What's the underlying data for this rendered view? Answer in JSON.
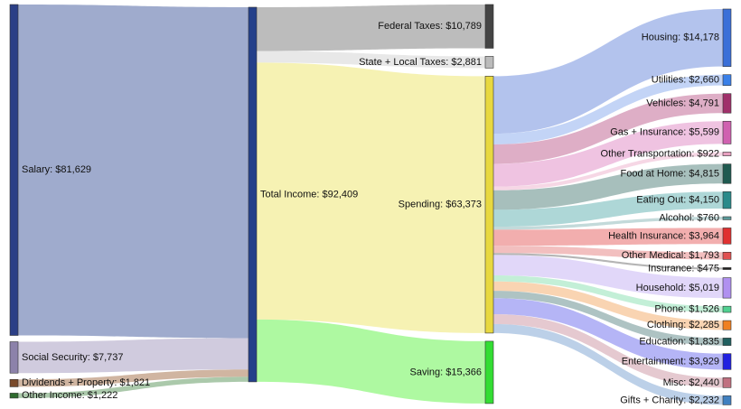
{
  "chart_data": {
    "type": "sankey",
    "nodes": [
      {
        "label": "Salary: $81,629",
        "value": 81629,
        "color": "#2b3f86"
      },
      {
        "label": "Social Security: $7,737",
        "value": 7737,
        "color": "#8c82aa"
      },
      {
        "label": "Dividends + Property: $1,821",
        "value": 1821,
        "color": "#7a4a2a"
      },
      {
        "label": "Other Income: $1,222",
        "value": 1222,
        "color": "#2e6b2e"
      },
      {
        "label": "Total Income: $92,409",
        "value": 92409,
        "color": "#24408a"
      },
      {
        "label": "Federal Taxes: $10,789",
        "value": 10789,
        "color": "#444444"
      },
      {
        "label": "State + Local Taxes: $2,881",
        "value": 2881,
        "color": "#bbbbbb"
      },
      {
        "label": "Spending: $63,373",
        "value": 63373,
        "color": "#e8d840"
      },
      {
        "label": "Saving: $15,366",
        "value": 15366,
        "color": "#33dd33"
      },
      {
        "label": "Housing: $14,178",
        "value": 14178,
        "color": "#3a6fd8"
      },
      {
        "label": "Utilities: $2,660",
        "value": 2660,
        "color": "#3a80e8"
      },
      {
        "label": "Vehicles: $4,791",
        "value": 4791,
        "color": "#a0306a"
      },
      {
        "label": "Gas + Insurance: $5,599",
        "value": 5599,
        "color": "#d060b0"
      },
      {
        "label": "Other Transportation: $922",
        "value": 922,
        "color": "#e8a0c0"
      },
      {
        "label": "Food at Home: $4,815",
        "value": 4815,
        "color": "#1f5a50"
      },
      {
        "label": "Eating Out: $4,150",
        "value": 4150,
        "color": "#2a8a8a"
      },
      {
        "label": "Alcohol: $760",
        "value": 760,
        "color": "#5a9a9a"
      },
      {
        "label": "Health Insurance: $3,964",
        "value": 3964,
        "color": "#e03030"
      },
      {
        "label": "Other Medical: $1,793",
        "value": 1793,
        "color": "#e05050"
      },
      {
        "label": "Insurance: $475",
        "value": 475,
        "color": "#222222"
      },
      {
        "label": "Household: $5,019",
        "value": 5019,
        "color": "#b090f0"
      },
      {
        "label": "Phone: $1,526",
        "value": 1526,
        "color": "#50d090"
      },
      {
        "label": "Clothing: $2,285",
        "value": 2285,
        "color": "#f08020"
      },
      {
        "label": "Education: $1,835",
        "value": 1835,
        "color": "#206060"
      },
      {
        "label": "Entertainment: $3,929",
        "value": 3929,
        "color": "#2020e0"
      },
      {
        "label": "Misc: $2,440",
        "value": 2440,
        "color": "#c07080"
      },
      {
        "label": "Gifts + Charity: $2,232",
        "value": 2232,
        "color": "#4080c0"
      }
    ],
    "links": [
      {
        "source": 0,
        "target": 4,
        "value": 81629,
        "color": "#8e9cc4"
      },
      {
        "source": 1,
        "target": 4,
        "value": 7737,
        "color": "#c8c2d8"
      },
      {
        "source": 2,
        "target": 4,
        "value": 1821,
        "color": "#c8a890"
      },
      {
        "source": 3,
        "target": 4,
        "value": 1222,
        "color": "#9cc09c"
      },
      {
        "source": 4,
        "target": 5,
        "value": 10789,
        "color": "#b0b0b0"
      },
      {
        "source": 4,
        "target": 6,
        "value": 2881,
        "color": "#e4e4e4"
      },
      {
        "source": 4,
        "target": 7,
        "value": 63373,
        "color": "#f5f0a6"
      },
      {
        "source": 4,
        "target": 8,
        "value": 15366,
        "color": "#a0f890"
      },
      {
        "source": 7,
        "target": 9,
        "value": 14178,
        "color": "#a6b8ea"
      },
      {
        "source": 7,
        "target": 10,
        "value": 2660,
        "color": "#b8ccf4"
      },
      {
        "source": 7,
        "target": 11,
        "value": 4791,
        "color": "#d8a0bc"
      },
      {
        "source": 7,
        "target": 12,
        "value": 5599,
        "color": "#ecb8dc"
      },
      {
        "source": 7,
        "target": 13,
        "value": 922,
        "color": "#f4d0e0"
      },
      {
        "source": 7,
        "target": 14,
        "value": 4815,
        "color": "#98b4b0"
      },
      {
        "source": 7,
        "target": 15,
        "value": 4150,
        "color": "#a0d0d0"
      },
      {
        "source": 7,
        "target": 16,
        "value": 760,
        "color": "#b8d4d4"
      },
      {
        "source": 7,
        "target": 17,
        "value": 3964,
        "color": "#f0a0a0"
      },
      {
        "source": 7,
        "target": 18,
        "value": 1793,
        "color": "#f0b4b4"
      },
      {
        "source": 7,
        "target": 19,
        "value": 475,
        "color": "#a8a8a8"
      },
      {
        "source": 7,
        "target": 20,
        "value": 5019,
        "color": "#dcd0f8"
      },
      {
        "source": 7,
        "target": 21,
        "value": 1526,
        "color": "#b8ecd0"
      },
      {
        "source": 7,
        "target": 22,
        "value": 2285,
        "color": "#f8cca4"
      },
      {
        "source": 7,
        "target": 23,
        "value": 1835,
        "color": "#a0b8b8"
      },
      {
        "source": 7,
        "target": 24,
        "value": 3929,
        "color": "#a8a8f4"
      },
      {
        "source": 7,
        "target": 25,
        "value": 2440,
        "color": "#e0c0c8"
      },
      {
        "source": 7,
        "target": 26,
        "value": 2232,
        "color": "#b0c8e4"
      }
    ]
  }
}
